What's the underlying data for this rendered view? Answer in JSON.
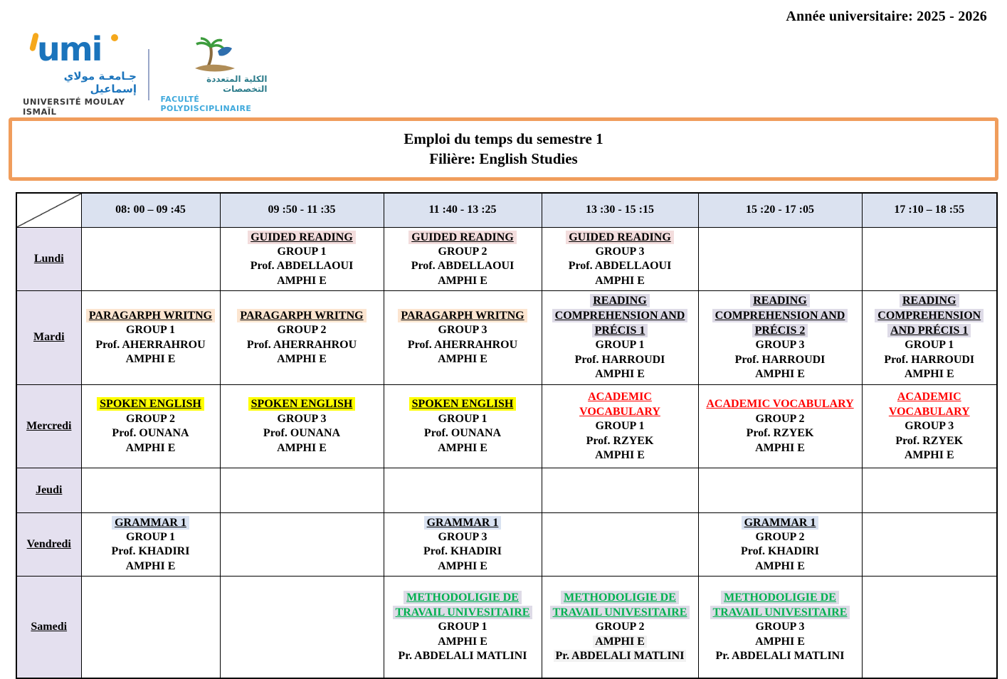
{
  "header": {
    "academic_year": "Année universitaire: 2025 - 2026",
    "logos": {
      "umi": {
        "mark": "umi",
        "arabic": "جـامعـة مولاي إسماعيل",
        "latin": "UNIVERSITÉ MOULAY ISMAÏL"
      },
      "fp": {
        "arabic": "الكلية المتعددة التخصصات",
        "latin": "FACULTÉ POLYDISCIPLINAIRE"
      }
    }
  },
  "title": {
    "line1": "Emploi du temps du semestre 1",
    "line2": "Filière: English Studies"
  },
  "colors": {
    "orange_border": "#f09d5c",
    "header_row_bg": "#dbe2f0",
    "day_column_bg": "#e4e0ef",
    "detail_highlight_gray": "#f2f2f2"
  },
  "course_styles": {
    "guided": {
      "bg": "#f3dddd",
      "color": "#000000"
    },
    "paragraph": {
      "bg": "#fce5d0",
      "color": "#000000"
    },
    "reading": {
      "bg": "#dedbe7",
      "color": "#000000"
    },
    "spoken": {
      "bg": "#ffff00",
      "color": "#000000"
    },
    "academic": {
      "bg": "",
      "color": "#ff0000"
    },
    "grammar": {
      "bg": "#d9e2f1",
      "color": "#000000"
    },
    "methodo": {
      "bg": "#dedbe7",
      "color": "#00b050"
    }
  },
  "timetable": {
    "time_slots": [
      "08: 00 – 09 :45",
      "09 :50 - 11 :35",
      "11 :40 - 13 :25",
      "13 :30 - 15 :15",
      "15 :20 - 17 :05",
      "17 :10 – 18 :55"
    ],
    "rows": [
      {
        "day": "Lundi",
        "cells": [
          null,
          {
            "title": "GUIDED READING",
            "style": "guided",
            "details": [
              "GROUP 1",
              "Prof.  ABDELLAOUI",
              "AMPHI E"
            ]
          },
          {
            "title": "GUIDED READING",
            "style": "guided",
            "details": [
              "GROUP 2",
              "Prof. ABDELLAOUI",
              "AMPHI E"
            ]
          },
          {
            "title": "GUIDED READING",
            "style": "guided",
            "details": [
              "GROUP 3",
              "Prof.  ABDELLAOUI",
              "AMPHI E"
            ]
          },
          null,
          null
        ]
      },
      {
        "day": "Mardi",
        "cells": [
          {
            "title": "PARAGARPH WRITNG",
            "style": "paragraph",
            "details": [
              "GROUP 1",
              "Prof. AHERRAHROU",
              "AMPHI E"
            ]
          },
          {
            "title": "PARAGARPH WRITNG",
            "style": "paragraph",
            "details": [
              "GROUP 2",
              "Prof. AHERRAHROU",
              "AMPHI E"
            ]
          },
          {
            "title": "PARAGARPH WRITNG",
            "style": "paragraph",
            "details": [
              "GROUP 3",
              "Prof. AHERRAHROU",
              "AMPHI E"
            ]
          },
          {
            "title": "READING COMPREHENSION AND PRÉCIS 1",
            "style": "reading",
            "details": [
              "GROUP 1",
              "Prof. HARROUDI",
              "AMPHI E"
            ]
          },
          {
            "title": "READING COMPREHENSION AND PRÉCIS 2",
            "style": "reading",
            "details": [
              "GROUP 3",
              "Prof.  HARROUDI",
              "AMPHI E"
            ]
          },
          {
            "title": "READING COMPREHENSION AND PRÉCIS 1",
            "style": "reading",
            "details": [
              "GROUP 1",
              "Prof. HARROUDI",
              "AMPHI E"
            ]
          }
        ]
      },
      {
        "day": "Mercredi",
        "cells": [
          {
            "title": "SPOKEN ENGLISH",
            "style": "spoken",
            "details": [
              "GROUP 2",
              "Prof.  OUNANA",
              "AMPHI E"
            ]
          },
          {
            "title": "SPOKEN ENGLISH",
            "style": "spoken",
            "details": [
              "GROUP 3",
              "Prof. OUNANA",
              "AMPHI E"
            ]
          },
          {
            "title": "SPOKEN ENGLISH",
            "style": "spoken",
            "details": [
              "GROUP 1",
              "Prof. OUNANA",
              "AMPHI E"
            ]
          },
          {
            "title": "ACADEMIC VOCABULARY",
            "style": "academic",
            "details": [
              "GROUP 1",
              "Prof. RZYEK",
              "AMPHI E"
            ]
          },
          {
            "title": "ACADEMIC VOCABULARY",
            "style": "academic",
            "details": [
              "GROUP 2",
              "Prof. RZYEK",
              "AMPHI E"
            ]
          },
          {
            "title": "ACADEMIC VOCABULARY",
            "style": "academic",
            "details": [
              "GROUP 3",
              "Prof. RZYEK",
              "AMPHI E"
            ]
          }
        ]
      },
      {
        "day": "Jeudi",
        "cells": [
          null,
          null,
          null,
          null,
          null,
          null
        ]
      },
      {
        "day": "Vendredi",
        "cells": [
          {
            "title": "GRAMMAR 1",
            "style": "grammar",
            "details": [
              "GROUP 1",
              "Prof. KHADIRI",
              "AMPHI E"
            ]
          },
          null,
          {
            "title": "GRAMMAR 1",
            "style": "grammar",
            "details": [
              "GROUP 3",
              "Prof. KHADIRI",
              "AMPHI E"
            ]
          },
          null,
          {
            "title": "GRAMMAR 1",
            "style": "grammar",
            "details": [
              "GROUP 2",
              "Prof. KHADIRI",
              "AMPHI E"
            ]
          },
          null
        ]
      },
      {
        "day": "Samedi",
        "cells": [
          null,
          null,
          {
            "title": "METHODOLIGIE DE TRAVAIL UNIVESITAIRE",
            "style": "methodo",
            "details": [
              "GROUP 1",
              "AMPHI E",
              "Pr. ABDELALI  MATLINI"
            ]
          },
          {
            "title": "METHODOLIGIE DE TRAVAIL UNIVESITAIRE",
            "style": "methodo",
            "details": [
              "GROUP 2",
              "AMPHI E",
              "Pr. ABDELALI  MATLINI"
            ],
            "hl_details": [
              1,
              2
            ]
          },
          {
            "title": "METHODOLIGIE DE TRAVAIL UNIVESITAIRE",
            "style": "methodo",
            "details": [
              "GROUP 3",
              "AMPHI E",
              "Pr. ABDELALI  MATLINI"
            ]
          },
          null
        ]
      }
    ]
  }
}
